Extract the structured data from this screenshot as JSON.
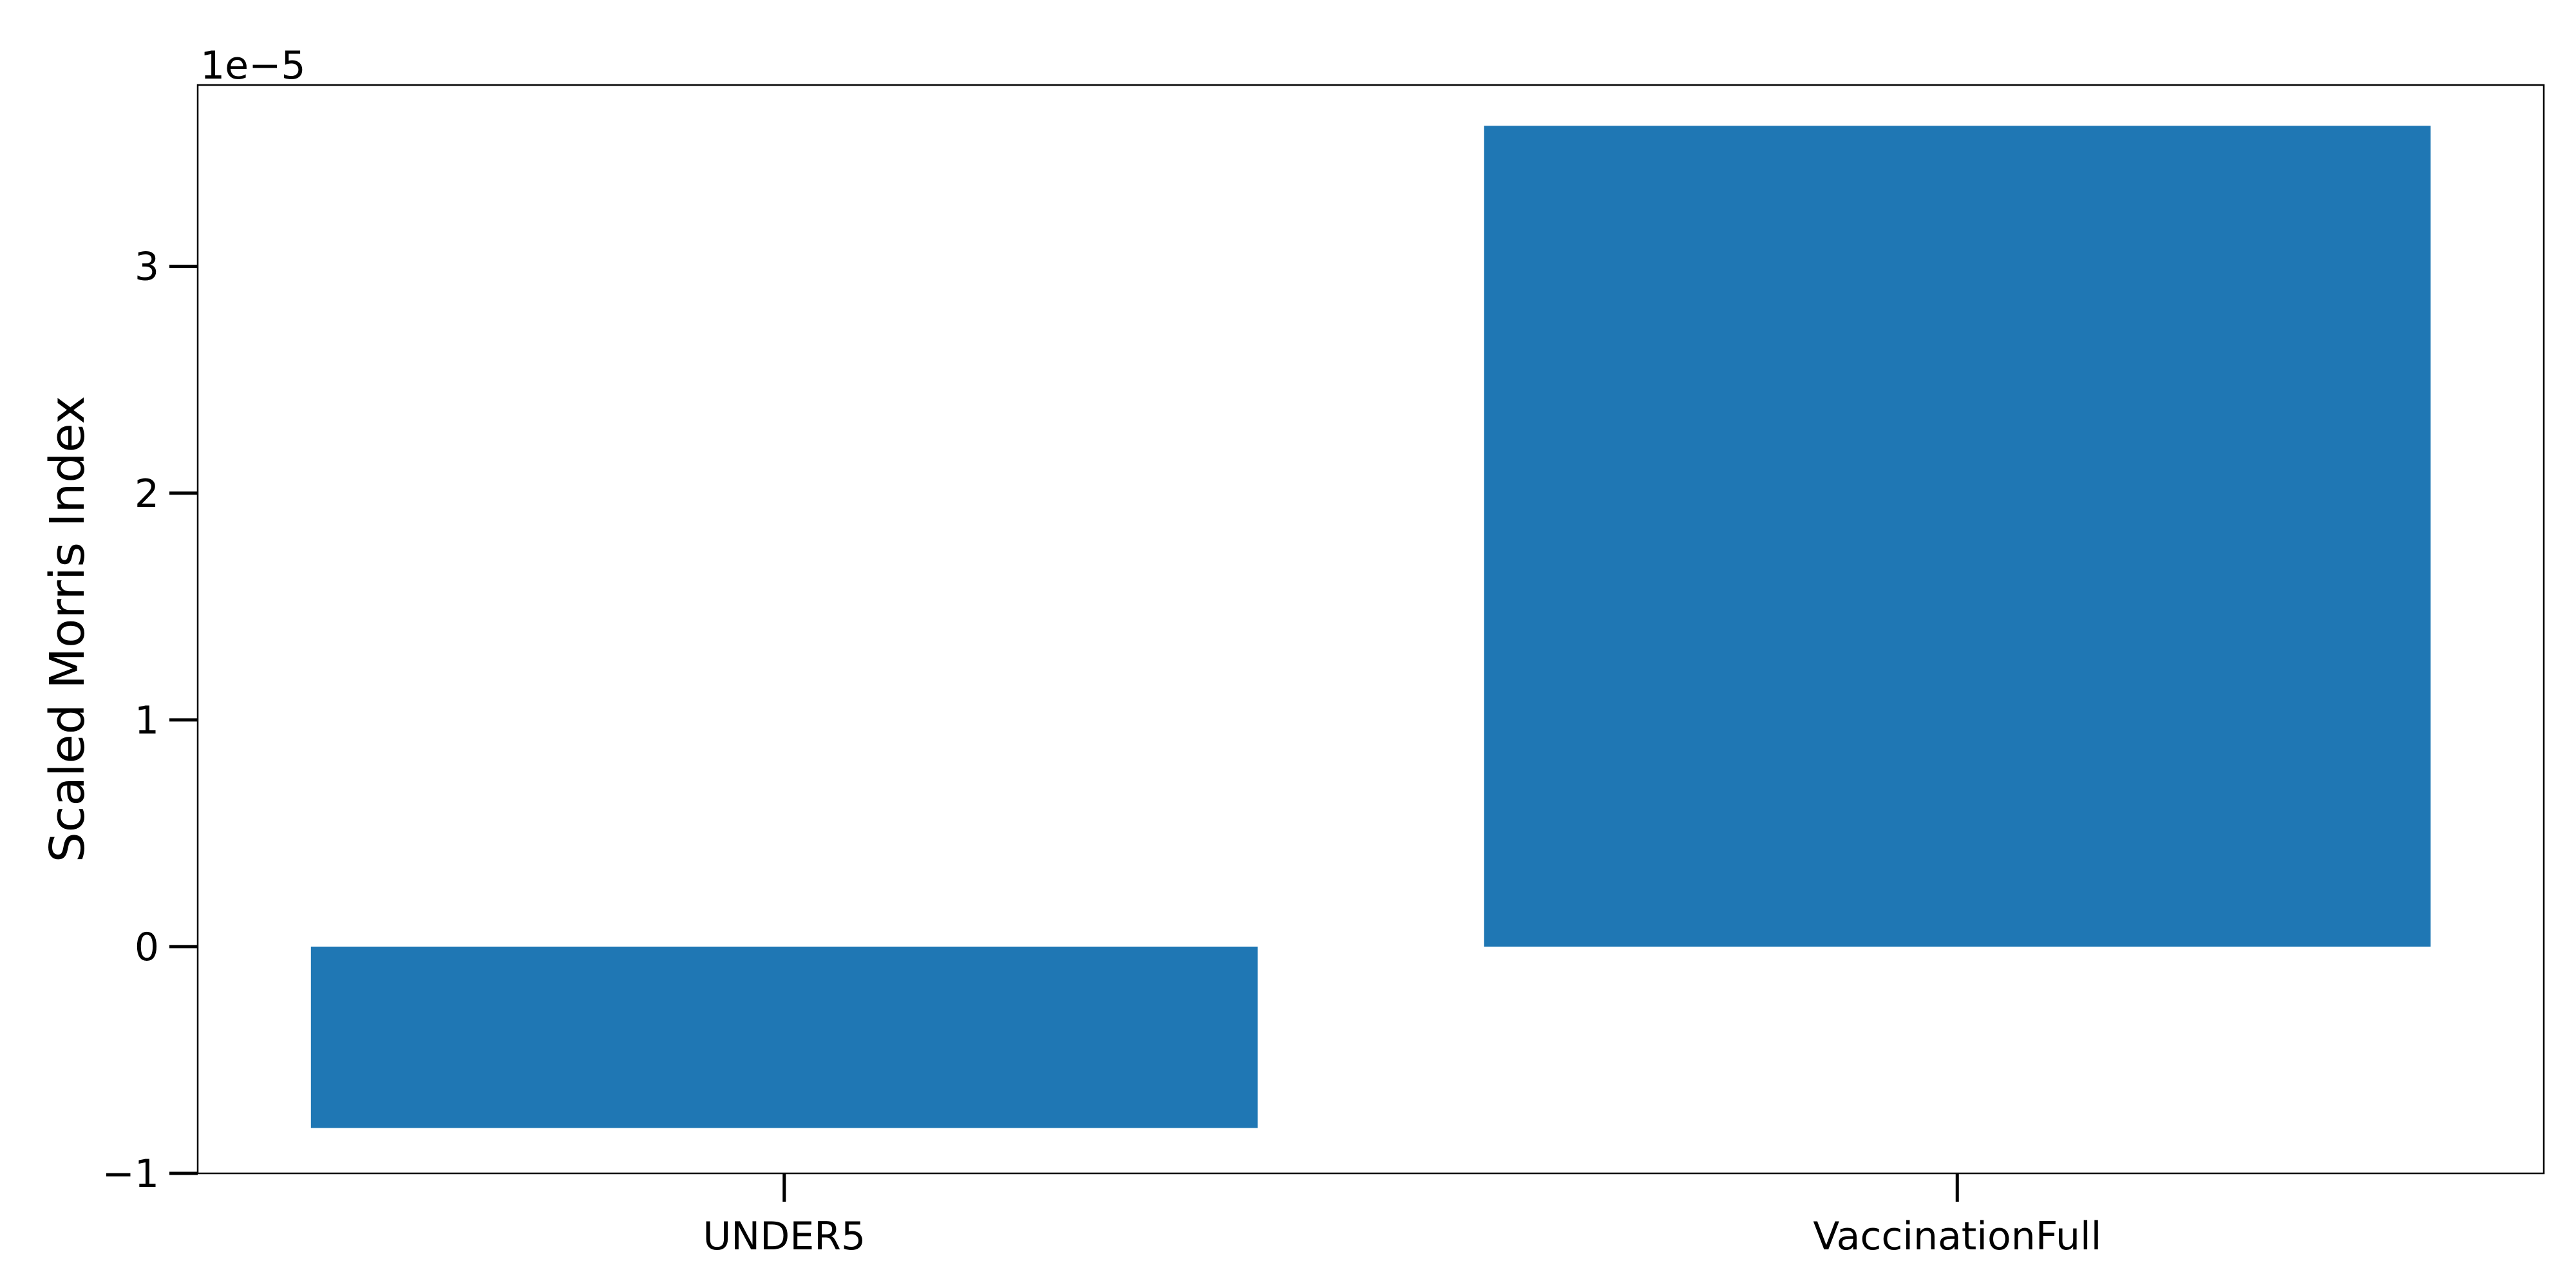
{
  "chart_data": {
    "type": "bar",
    "categories": [
      "UNDER5",
      "VaccinationFull"
    ],
    "values": [
      -8e-06,
      3.62e-05
    ],
    "title": "",
    "xlabel": "",
    "ylabel": "Scaled Morris Index",
    "ylim": [
      -1e-05,
      3.8e-05
    ],
    "y_ticks": [
      -1e-05,
      0,
      1e-05,
      2e-05,
      3e-05
    ],
    "y_tick_labels": [
      "−1",
      "0",
      "1",
      "2",
      "3"
    ],
    "y_offset_label": "1e−5",
    "grid": false,
    "legend": "none",
    "bar_color": "#1f77b4"
  }
}
